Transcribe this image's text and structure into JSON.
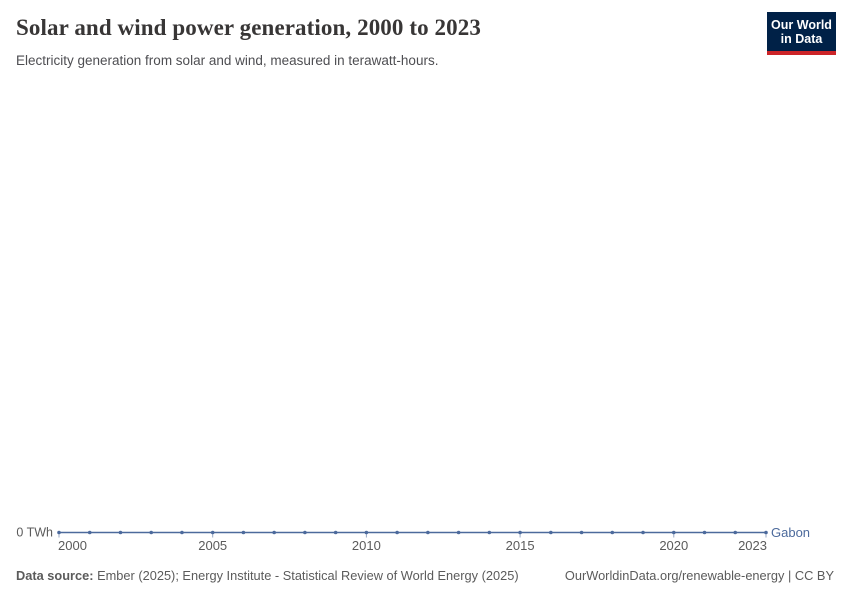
{
  "header": {
    "title": "Solar and wind power generation, 2000 to 2023",
    "subtitle": "Electricity generation from solar and wind, measured in terawatt-hours.",
    "logo": {
      "line1": "Our World",
      "line2": "in Data",
      "bg_color": "#002147",
      "accent_color": "#cc2428"
    }
  },
  "chart_data": {
    "type": "line",
    "title": "Solar and wind power generation, 2000 to 2023",
    "xlabel": "",
    "ylabel": "TWh",
    "x": [
      2000,
      2001,
      2002,
      2003,
      2004,
      2005,
      2006,
      2007,
      2008,
      2009,
      2010,
      2011,
      2012,
      2013,
      2014,
      2015,
      2016,
      2017,
      2018,
      2019,
      2020,
      2021,
      2022,
      2023
    ],
    "series": [
      {
        "name": "Gabon",
        "color": "#4c6a9c",
        "values": [
          0,
          0,
          0,
          0,
          0,
          0,
          0,
          0,
          0,
          0,
          0,
          0,
          0,
          0,
          0,
          0,
          0,
          0,
          0,
          0,
          0,
          0,
          0,
          0
        ]
      }
    ],
    "x_ticks": [
      2000,
      2005,
      2010,
      2015,
      2020,
      2023
    ],
    "xlim": [
      2000,
      2023
    ],
    "ylim": [
      0,
      0
    ],
    "y_axis_zero_label": "0 TWh",
    "grid": false,
    "legend_position": "end-of-line",
    "axis_text_color": "#5b5b5b",
    "tick_mark_color": "#98a8c4"
  },
  "footer": {
    "datasource_label": "Data source:",
    "datasource_text": " Ember (2025); Energy Institute - Statistical Review of World Energy (2025)",
    "link_text": "OurWorldinData.org/renewable-energy | CC BY"
  }
}
